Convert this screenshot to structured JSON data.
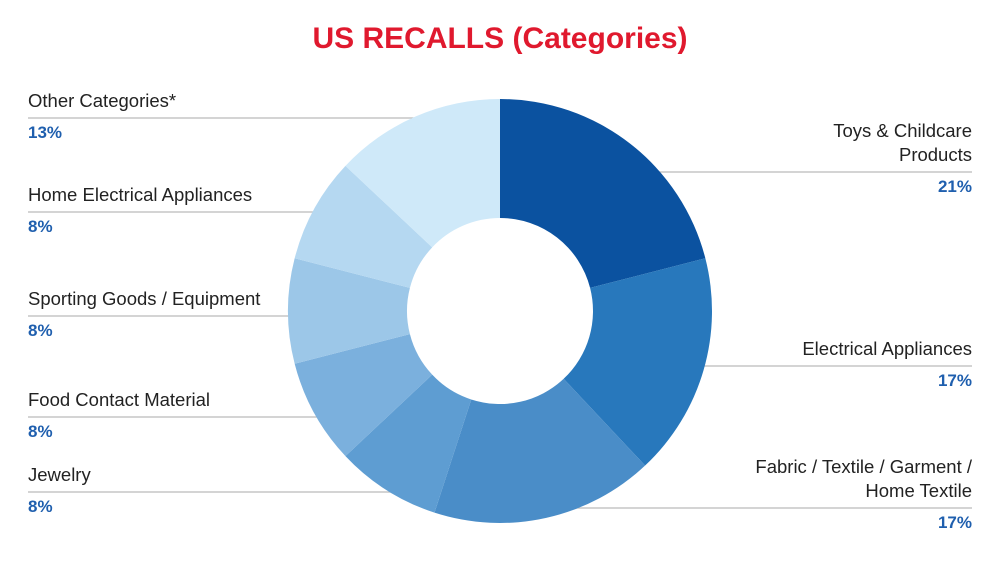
{
  "chart_data": {
    "type": "donut",
    "title": "US RECALLS (Categories)",
    "categories": [
      "Toys & Childcare Products",
      "Electrical Appliances",
      "Fabric / Textile / Garment / Home Textile",
      "Jewelry",
      "Food Contact Material",
      "Sporting Goods / Equipment",
      "Home Electrical Appliances",
      "Other Categories*"
    ],
    "values": [
      21,
      17,
      17,
      8,
      8,
      8,
      8,
      13
    ],
    "value_labels": [
      "21%",
      "17%",
      "17%",
      "8%",
      "8%",
      "8%",
      "8%",
      "13%"
    ],
    "colors": [
      "#0b52a0",
      "#2878bc",
      "#4a8dc8",
      "#5e9dd2",
      "#7bb0dd",
      "#9cc7e8",
      "#b5d8f1",
      "#cfe9f9"
    ]
  }
}
